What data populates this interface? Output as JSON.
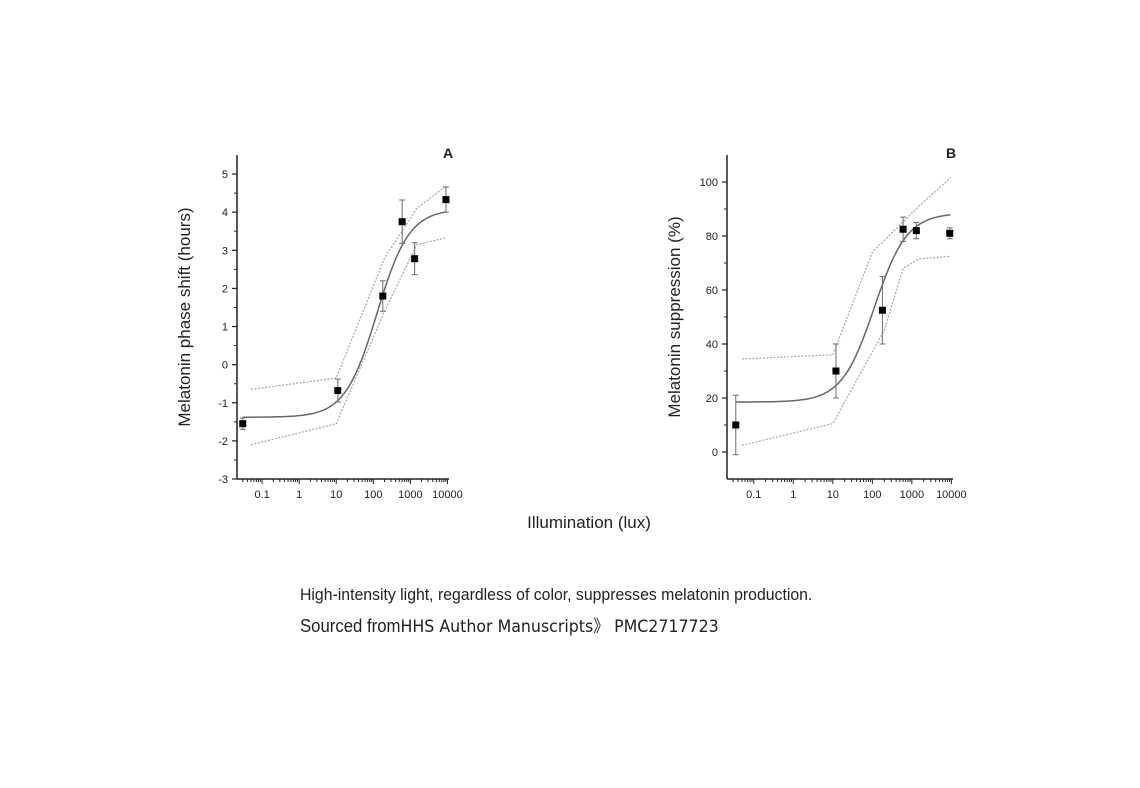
{
  "caption": {
    "line1": "High-intensity light, regardless of color, suppresses melatonin production.",
    "source_prefix": "Sourced from",
    "source_name": "HHS Author Manuscripts》 PMC2717723"
  },
  "shared_xlabel": "Illumination (lux)",
  "chart_data": [
    {
      "type": "scatter",
      "panel": "A",
      "xlabel": "Illumination (lux)",
      "ylabel": "Melatonin phase shift (hours)",
      "xscale": "log",
      "xlim": [
        0.021,
        11000
      ],
      "ylim": [
        -3,
        5.5
      ],
      "xticks": [
        0.1,
        1,
        10,
        100,
        1000,
        10000
      ],
      "xticklabels": [
        "0.1",
        "1",
        "10",
        "100",
        "1000",
        "10000"
      ],
      "yticks": [
        -3,
        -2,
        -1,
        0,
        1,
        2,
        3,
        4,
        5
      ],
      "yticklabels": [
        "-3",
        "-2",
        "-1",
        "0",
        "1",
        "2",
        "3",
        "4",
        "5"
      ],
      "points": [
        {
          "x": 0.03,
          "y": -1.55,
          "err": 0.15
        },
        {
          "x": 11,
          "y": -0.68,
          "err": 0.3
        },
        {
          "x": 180,
          "y": 1.8,
          "err": 0.4
        },
        {
          "x": 600,
          "y": 3.75,
          "err": 0.57
        },
        {
          "x": 1300,
          "y": 2.78,
          "err": 0.42
        },
        {
          "x": 9100,
          "y": 4.33,
          "err": 0.33
        }
      ],
      "fit": {
        "bottom": -1.38,
        "top": 4.08,
        "log_ec50": 2.1,
        "hill": 1.0,
        "xrange": [
          0.03,
          9500
        ]
      },
      "upper_band": [
        [
          0.05,
          -0.65
        ],
        [
          10,
          -0.35
        ],
        [
          200,
          2.8
        ],
        [
          1500,
          4.1
        ],
        [
          9500,
          4.7
        ]
      ],
      "lower_band": [
        [
          0.05,
          -2.1
        ],
        [
          10,
          -1.55
        ],
        [
          200,
          1.4
        ],
        [
          1500,
          3.15
        ],
        [
          9500,
          3.33
        ]
      ]
    },
    {
      "type": "scatter",
      "panel": "B",
      "xlabel": "Illumination (lux)",
      "ylabel": "Melatonin suppression (%)",
      "xscale": "log",
      "xlim": [
        0.021,
        11000
      ],
      "ylim": [
        -10,
        110
      ],
      "xticks": [
        0.1,
        1,
        10,
        100,
        1000,
        10000
      ],
      "xticklabels": [
        "0.1",
        "1",
        "10",
        "100",
        "1000",
        "10000"
      ],
      "yticks": [
        0,
        20,
        40,
        60,
        80,
        100
      ],
      "yticklabels": [
        "0",
        "20",
        "40",
        "60",
        "80",
        "100"
      ],
      "points": [
        {
          "x": 0.035,
          "y": 10,
          "err": 11
        },
        {
          "x": 12,
          "y": 30,
          "err": 10
        },
        {
          "x": 180,
          "y": 52.5,
          "err": 12.5
        },
        {
          "x": 600,
          "y": 82.5,
          "err": 4.5
        },
        {
          "x": 1300,
          "y": 82,
          "err": 3
        },
        {
          "x": 9100,
          "y": 81,
          "err": 2
        }
      ],
      "fit": {
        "bottom": 18.5,
        "top": 88.5,
        "log_ec50": 2.05,
        "hill": 1.05,
        "xrange": [
          0.035,
          9500
        ]
      },
      "upper_band": [
        [
          0.05,
          34.5
        ],
        [
          10,
          36
        ],
        [
          100,
          74
        ],
        [
          1500,
          91
        ],
        [
          9500,
          101.5
        ]
      ],
      "lower_band": [
        [
          0.05,
          2.5
        ],
        [
          10,
          10.5
        ],
        [
          200,
          45
        ],
        [
          600,
          68
        ],
        [
          1500,
          71.5
        ],
        [
          9500,
          72.5
        ]
      ]
    }
  ]
}
